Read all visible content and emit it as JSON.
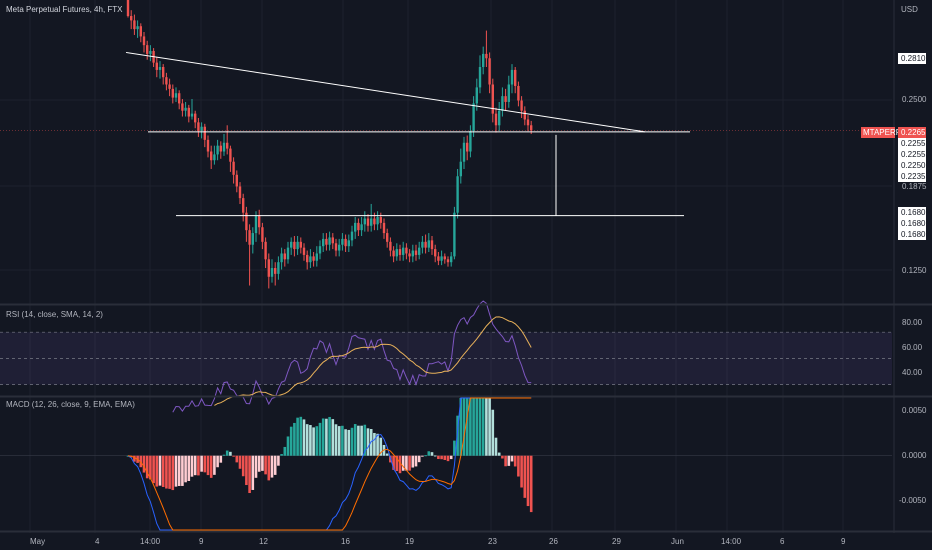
{
  "header": {
    "title": "Meta Perpetual Futures, 4h, FTX",
    "currency": "USD"
  },
  "colors": {
    "up": "#26a69a",
    "down": "#ef5350",
    "bg": "#131722",
    "grid": "#1e222d",
    "rsi": "#7e57c2",
    "rsi_ma": "#e8b15a",
    "macd": "#2962ff",
    "signal": "#ff6d00",
    "hist_up_strong": "#26a69a",
    "hist_up_weak": "#b2dfdb",
    "hist_down_strong": "#ef5350",
    "hist_down_weak": "#ffcdd2"
  },
  "price_axis": {
    "ticks": [
      "0.2500",
      "0.1875",
      "0.1250"
    ],
    "tag_values": [
      "0.2810",
      "0.2255",
      "0.2255",
      "0.2250",
      "0.2235",
      "0.1680",
      "0.1680",
      "0.1680"
    ],
    "last": {
      "symbol": "MTAPERP",
      "value": "0.2265"
    }
  },
  "rsi_panel": {
    "label": "RSI (14, close, SMA, 14, 2)",
    "ticks": [
      "80.00",
      "60.00",
      "40.00"
    ]
  },
  "macd_panel": {
    "label": "MACD (12, 26, close, 9, EMA, EMA)",
    "ticks": [
      "0.0050",
      "0.0000",
      "-0.0050"
    ]
  },
  "time_axis": [
    "May",
    "4",
    "14:00",
    "9",
    "12",
    "16",
    "19",
    "23",
    "26",
    "29",
    "Jun",
    "14:00",
    "6",
    "9"
  ],
  "chart_data": {
    "type": "candlestick",
    "price_ylim": [
      0.108,
      0.316
    ],
    "candles": [
      [
        0.316,
        0.305,
        0.312,
        0.304
      ],
      [
        0.305,
        0.302,
        0.309,
        0.296
      ],
      [
        0.302,
        0.296,
        0.306,
        0.292
      ],
      [
        0.296,
        0.298,
        0.302,
        0.29
      ],
      [
        0.298,
        0.291,
        0.3,
        0.287
      ],
      [
        0.291,
        0.285,
        0.294,
        0.28
      ],
      [
        0.285,
        0.279,
        0.288,
        0.275
      ],
      [
        0.279,
        0.281,
        0.285,
        0.274
      ],
      [
        0.281,
        0.273,
        0.283,
        0.27
      ],
      [
        0.273,
        0.268,
        0.277,
        0.263
      ],
      [
        0.268,
        0.27,
        0.274,
        0.262
      ],
      [
        0.27,
        0.263,
        0.272,
        0.258
      ],
      [
        0.263,
        0.258,
        0.266,
        0.254
      ],
      [
        0.258,
        0.255,
        0.262,
        0.25
      ],
      [
        0.255,
        0.249,
        0.258,
        0.245
      ],
      [
        0.249,
        0.252,
        0.256,
        0.246
      ],
      [
        0.252,
        0.245,
        0.254,
        0.241
      ],
      [
        0.245,
        0.24,
        0.248,
        0.236
      ],
      [
        0.24,
        0.242,
        0.246,
        0.236
      ],
      [
        0.242,
        0.236,
        0.244,
        0.232
      ],
      [
        0.236,
        0.238,
        0.248,
        0.234
      ],
      [
        0.238,
        0.232,
        0.24,
        0.228
      ],
      [
        0.232,
        0.226,
        0.235,
        0.222
      ],
      [
        0.226,
        0.229,
        0.232,
        0.221
      ],
      [
        0.229,
        0.22,
        0.231,
        0.215
      ],
      [
        0.22,
        0.212,
        0.223,
        0.208
      ],
      [
        0.212,
        0.206,
        0.216,
        0.2
      ],
      [
        0.206,
        0.21,
        0.216,
        0.203
      ],
      [
        0.21,
        0.216,
        0.22,
        0.206
      ],
      [
        0.216,
        0.212,
        0.219,
        0.207
      ],
      [
        0.212,
        0.218,
        0.224,
        0.209
      ],
      [
        0.218,
        0.214,
        0.23,
        0.21
      ],
      [
        0.214,
        0.205,
        0.216,
        0.198
      ],
      [
        0.205,
        0.196,
        0.208,
        0.19
      ],
      [
        0.196,
        0.188,
        0.199,
        0.184
      ],
      [
        0.188,
        0.18,
        0.191,
        0.176
      ],
      [
        0.18,
        0.17,
        0.183,
        0.164
      ],
      [
        0.17,
        0.158,
        0.174,
        0.15
      ],
      [
        0.158,
        0.148,
        0.162,
        0.12
      ],
      [
        0.148,
        0.156,
        0.16,
        0.142
      ],
      [
        0.156,
        0.168,
        0.171,
        0.15
      ],
      [
        0.168,
        0.16,
        0.172,
        0.155
      ],
      [
        0.16,
        0.15,
        0.163,
        0.145
      ],
      [
        0.15,
        0.138,
        0.153,
        0.132
      ],
      [
        0.138,
        0.126,
        0.142,
        0.118
      ],
      [
        0.126,
        0.132,
        0.138,
        0.122
      ],
      [
        0.132,
        0.128,
        0.136,
        0.12
      ],
      [
        0.128,
        0.136,
        0.14,
        0.124
      ],
      [
        0.136,
        0.142,
        0.146,
        0.131
      ],
      [
        0.142,
        0.138,
        0.145,
        0.133
      ],
      [
        0.138,
        0.146,
        0.15,
        0.135
      ],
      [
        0.146,
        0.15,
        0.153,
        0.141
      ],
      [
        0.15,
        0.145,
        0.154,
        0.14
      ],
      [
        0.145,
        0.15,
        0.154,
        0.141
      ],
      [
        0.15,
        0.146,
        0.153,
        0.142
      ],
      [
        0.146,
        0.141,
        0.149,
        0.137
      ],
      [
        0.141,
        0.136,
        0.144,
        0.131
      ],
      [
        0.136,
        0.14,
        0.145,
        0.132
      ],
      [
        0.14,
        0.137,
        0.143,
        0.133
      ],
      [
        0.137,
        0.142,
        0.147,
        0.133
      ],
      [
        0.142,
        0.147,
        0.151,
        0.138
      ],
      [
        0.147,
        0.152,
        0.156,
        0.143
      ],
      [
        0.152,
        0.148,
        0.156,
        0.144
      ],
      [
        0.148,
        0.153,
        0.157,
        0.144
      ],
      [
        0.153,
        0.149,
        0.156,
        0.145
      ],
      [
        0.149,
        0.144,
        0.152,
        0.14
      ],
      [
        0.144,
        0.148,
        0.152,
        0.14
      ],
      [
        0.148,
        0.152,
        0.156,
        0.144
      ],
      [
        0.152,
        0.147,
        0.155,
        0.143
      ],
      [
        0.147,
        0.151,
        0.155,
        0.143
      ],
      [
        0.151,
        0.157,
        0.161,
        0.147
      ],
      [
        0.157,
        0.163,
        0.167,
        0.152
      ],
      [
        0.163,
        0.158,
        0.166,
        0.154
      ],
      [
        0.158,
        0.162,
        0.167,
        0.154
      ],
      [
        0.162,
        0.166,
        0.171,
        0.157
      ],
      [
        0.166,
        0.161,
        0.169,
        0.157
      ],
      [
        0.161,
        0.166,
        0.176,
        0.157
      ],
      [
        0.166,
        0.162,
        0.17,
        0.158
      ],
      [
        0.162,
        0.167,
        0.171,
        0.158
      ],
      [
        0.167,
        0.163,
        0.17,
        0.159
      ],
      [
        0.163,
        0.156,
        0.166,
        0.152
      ],
      [
        0.156,
        0.15,
        0.159,
        0.146
      ],
      [
        0.15,
        0.144,
        0.153,
        0.14
      ],
      [
        0.144,
        0.14,
        0.147,
        0.136
      ],
      [
        0.14,
        0.145,
        0.149,
        0.137
      ],
      [
        0.145,
        0.141,
        0.148,
        0.137
      ],
      [
        0.141,
        0.146,
        0.15,
        0.137
      ],
      [
        0.146,
        0.142,
        0.149,
        0.138
      ],
      [
        0.142,
        0.14,
        0.145,
        0.136
      ],
      [
        0.14,
        0.144,
        0.148,
        0.136
      ],
      [
        0.144,
        0.141,
        0.148,
        0.137
      ],
      [
        0.141,
        0.146,
        0.15,
        0.138
      ],
      [
        0.146,
        0.15,
        0.154,
        0.142
      ],
      [
        0.15,
        0.146,
        0.155,
        0.142
      ],
      [
        0.146,
        0.151,
        0.156,
        0.143
      ],
      [
        0.151,
        0.145,
        0.154,
        0.141
      ],
      [
        0.145,
        0.14,
        0.148,
        0.136
      ],
      [
        0.14,
        0.137,
        0.143,
        0.134
      ],
      [
        0.137,
        0.14,
        0.144,
        0.134
      ],
      [
        0.14,
        0.138,
        0.142,
        0.135
      ],
      [
        0.138,
        0.136,
        0.14,
        0.133
      ],
      [
        0.136,
        0.14,
        0.143,
        0.133
      ],
      [
        0.14,
        0.17,
        0.174,
        0.138
      ],
      [
        0.17,
        0.195,
        0.2,
        0.166
      ],
      [
        0.195,
        0.205,
        0.214,
        0.19
      ],
      [
        0.205,
        0.218,
        0.222,
        0.2
      ],
      [
        0.218,
        0.212,
        0.223,
        0.206
      ],
      [
        0.212,
        0.226,
        0.23,
        0.208
      ],
      [
        0.226,
        0.245,
        0.25,
        0.222
      ],
      [
        0.245,
        0.256,
        0.262,
        0.24
      ],
      [
        0.256,
        0.27,
        0.278,
        0.252
      ],
      [
        0.27,
        0.279,
        0.284,
        0.265
      ],
      [
        0.279,
        0.276,
        0.295,
        0.27
      ],
      [
        0.276,
        0.258,
        0.28,
        0.252
      ],
      [
        0.258,
        0.238,
        0.262,
        0.232
      ],
      [
        0.238,
        0.23,
        0.242,
        0.225
      ],
      [
        0.23,
        0.24,
        0.246,
        0.226
      ],
      [
        0.24,
        0.25,
        0.256,
        0.236
      ],
      [
        0.25,
        0.246,
        0.255,
        0.24
      ],
      [
        0.246,
        0.258,
        0.264,
        0.242
      ],
      [
        0.258,
        0.268,
        0.272,
        0.252
      ],
      [
        0.268,
        0.257,
        0.27,
        0.252
      ],
      [
        0.257,
        0.247,
        0.26,
        0.243
      ],
      [
        0.247,
        0.24,
        0.25,
        0.235
      ],
      [
        0.24,
        0.234,
        0.243,
        0.23
      ],
      [
        0.234,
        0.23,
        0.237,
        0.226
      ],
      [
        0.23,
        0.2265,
        0.233,
        0.224
      ]
    ],
    "levels": {
      "resistance": 0.2255,
      "support": 0.168
    },
    "macd_ylim": [
      -0.0085,
      0.0066
    ]
  }
}
